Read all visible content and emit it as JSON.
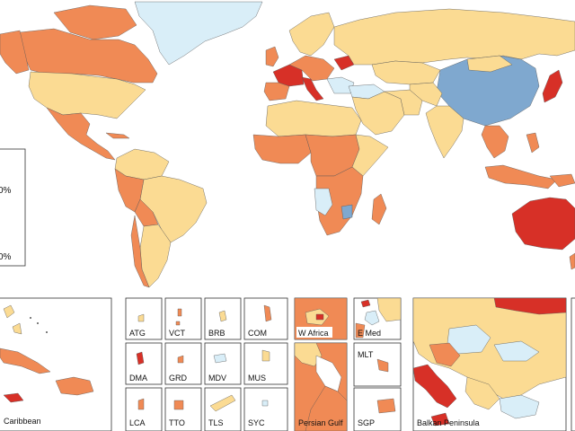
{
  "colors": {
    "lowest": "#7fa8cf",
    "low": "#d9eef8",
    "mid": "#fbdb93",
    "high": "#f08a55",
    "highest": "#d73027",
    "outline": "#555555"
  },
  "legend": {
    "labels": [
      "0%",
      "",
      "",
      "0%"
    ]
  },
  "insets": [
    {
      "id": "caribbean",
      "label": "Caribbean"
    },
    {
      "id": "atg",
      "label": "ATG"
    },
    {
      "id": "vct",
      "label": "VCT"
    },
    {
      "id": "brb",
      "label": "BRB"
    },
    {
      "id": "com",
      "label": "COM"
    },
    {
      "id": "dma",
      "label": "DMA"
    },
    {
      "id": "grd",
      "label": "GRD"
    },
    {
      "id": "mdv",
      "label": "MDV"
    },
    {
      "id": "mus",
      "label": "MUS"
    },
    {
      "id": "lca",
      "label": "LCA"
    },
    {
      "id": "tto",
      "label": "TTO"
    },
    {
      "id": "tls",
      "label": "TLS"
    },
    {
      "id": "syc",
      "label": "SYC"
    },
    {
      "id": "wafrica",
      "label": "W Africa"
    },
    {
      "id": "emed",
      "label": "E Med"
    },
    {
      "id": "mlt",
      "label": "MLT"
    },
    {
      "id": "persian",
      "label": "Persian Gulf"
    },
    {
      "id": "sgp",
      "label": "SGP"
    },
    {
      "id": "balkan",
      "label": "Balkan Peninsula"
    }
  ]
}
